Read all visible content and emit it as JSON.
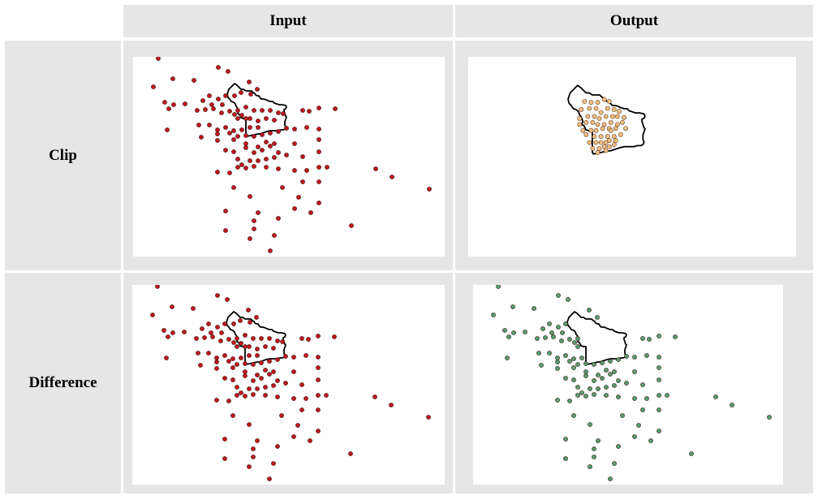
{
  "header": {
    "input_label": "Input",
    "output_label": "Output"
  },
  "rows": [
    {
      "label": "Clip"
    },
    {
      "label": "Difference"
    }
  ],
  "colors": {
    "input_point": "#c0171d",
    "clip_point": "#f5c083",
    "difference_point": "#5a9b6e",
    "boundary": "#000000"
  }
}
